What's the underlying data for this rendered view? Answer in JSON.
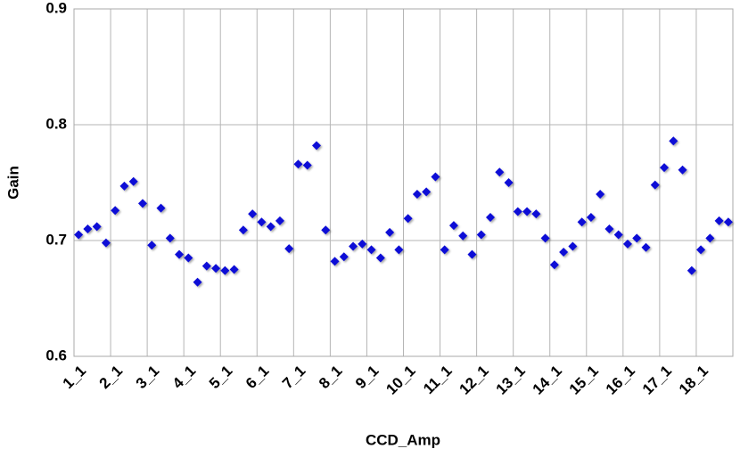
{
  "chart_data": {
    "type": "scatter",
    "x_label": "CCD_Amp",
    "y_label": "Gain",
    "categories": [
      "1_1",
      null,
      null,
      null,
      "2_1",
      null,
      null,
      null,
      "3_1",
      null,
      null,
      null,
      "4_1",
      null,
      null,
      null,
      "5_1",
      null,
      null,
      null,
      "6_1",
      null,
      null,
      null,
      "7_1",
      null,
      null,
      null,
      "8_1",
      null,
      null,
      null,
      "9_1",
      null,
      null,
      null,
      "10_1",
      null,
      null,
      null,
      "11_1",
      null,
      null,
      null,
      "12_1",
      null,
      null,
      null,
      "13_1",
      null,
      null,
      null,
      "14_1",
      null,
      null,
      null,
      "15_1",
      null,
      null,
      null,
      "16_1",
      null,
      null,
      null,
      "17_1",
      null,
      null,
      null,
      "18_1",
      null,
      null,
      null
    ],
    "values": [
      0.705,
      0.71,
      0.712,
      0.698,
      0.726,
      0.747,
      0.751,
      0.732,
      0.696,
      0.728,
      0.702,
      0.688,
      0.685,
      0.664,
      0.678,
      0.676,
      0.674,
      0.675,
      0.709,
      0.723,
      0.716,
      0.712,
      0.717,
      0.693,
      0.766,
      0.765,
      0.782,
      0.709,
      0.682,
      0.686,
      0.695,
      0.697,
      0.692,
      0.685,
      0.707,
      0.692,
      0.719,
      0.74,
      0.742,
      0.755,
      0.692,
      0.713,
      0.704,
      0.688,
      0.705,
      0.72,
      0.759,
      0.75,
      0.725,
      0.725,
      0.723,
      0.702,
      0.679,
      0.69,
      0.695,
      0.716,
      0.72,
      0.74,
      0.71,
      0.705,
      0.697,
      0.702,
      0.694,
      0.748,
      0.763,
      0.786,
      0.761,
      0.674,
      0.692,
      0.702,
      0.717,
      0.716
    ],
    "color": "#0a0ad6",
    "ylim": [
      0.6,
      0.9
    ],
    "yticks": [
      0.6,
      0.7,
      0.8,
      0.9
    ],
    "grid": true
  }
}
